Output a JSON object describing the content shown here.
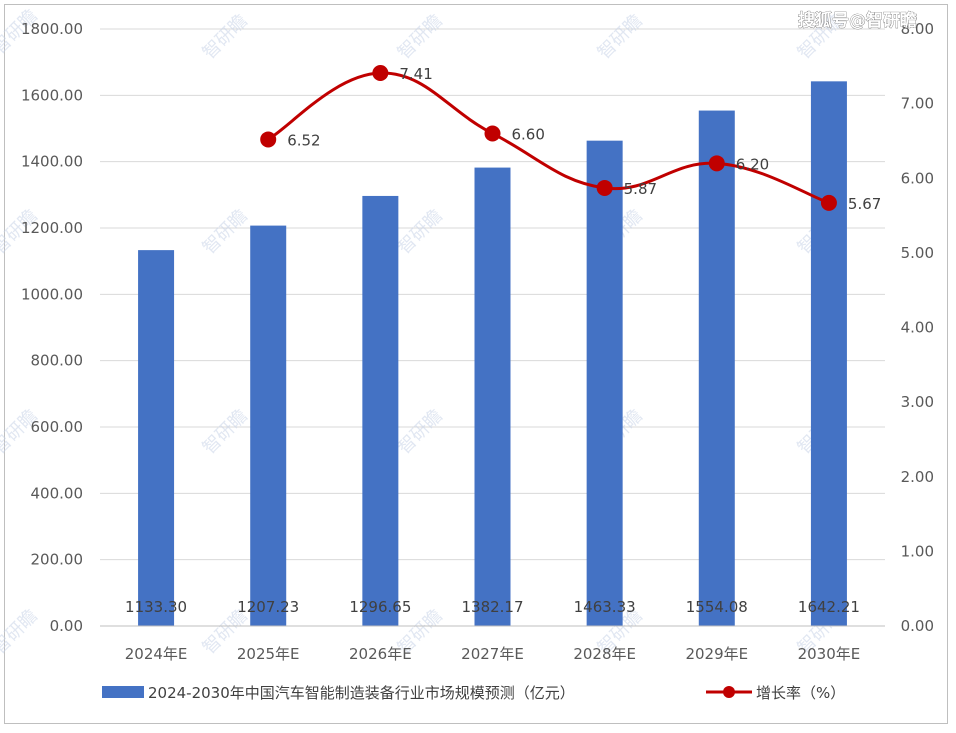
{
  "watermark_corner": "搜狐号@智研瞻",
  "watermark_tile": "智研瞻",
  "chart_data": {
    "type": "bar",
    "categories": [
      "2024年E",
      "2025年E",
      "2026年E",
      "2027年E",
      "2028年E",
      "2029年E",
      "2030年E"
    ],
    "series": [
      {
        "name": "2024-2030年中国汽车智能制造装备行业市场规模预测（亿元）",
        "type": "bar",
        "axis": "left",
        "color": "#4472c4",
        "values": [
          1133.3,
          1207.23,
          1296.65,
          1382.17,
          1463.33,
          1554.08,
          1642.21
        ],
        "labels": [
          "1133.30",
          "1207.23",
          "1296.65",
          "1382.17",
          "1463.33",
          "1554.08",
          "1642.21"
        ]
      },
      {
        "name": "增长率（%）",
        "type": "line",
        "axis": "right",
        "color": "#c00000",
        "smooth": true,
        "values": [
          null,
          6.52,
          7.41,
          6.6,
          5.87,
          6.2,
          5.67
        ],
        "labels": [
          "",
          "6.52",
          "7.41",
          "6.60",
          "5.87",
          "6.20",
          "5.67"
        ]
      }
    ],
    "y_left": {
      "range": [
        0,
        1800
      ],
      "ticks": [
        "0.00",
        "200.00",
        "400.00",
        "600.00",
        "800.00",
        "1000.00",
        "1200.00",
        "1400.00",
        "1600.00",
        "1800.00"
      ]
    },
    "y_right": {
      "range": [
        0,
        8
      ],
      "ticks": [
        "0.00",
        "1.00",
        "2.00",
        "3.00",
        "4.00",
        "5.00",
        "6.00",
        "7.00",
        "8.00"
      ]
    },
    "grid": true,
    "legend_position": "bottom"
  }
}
